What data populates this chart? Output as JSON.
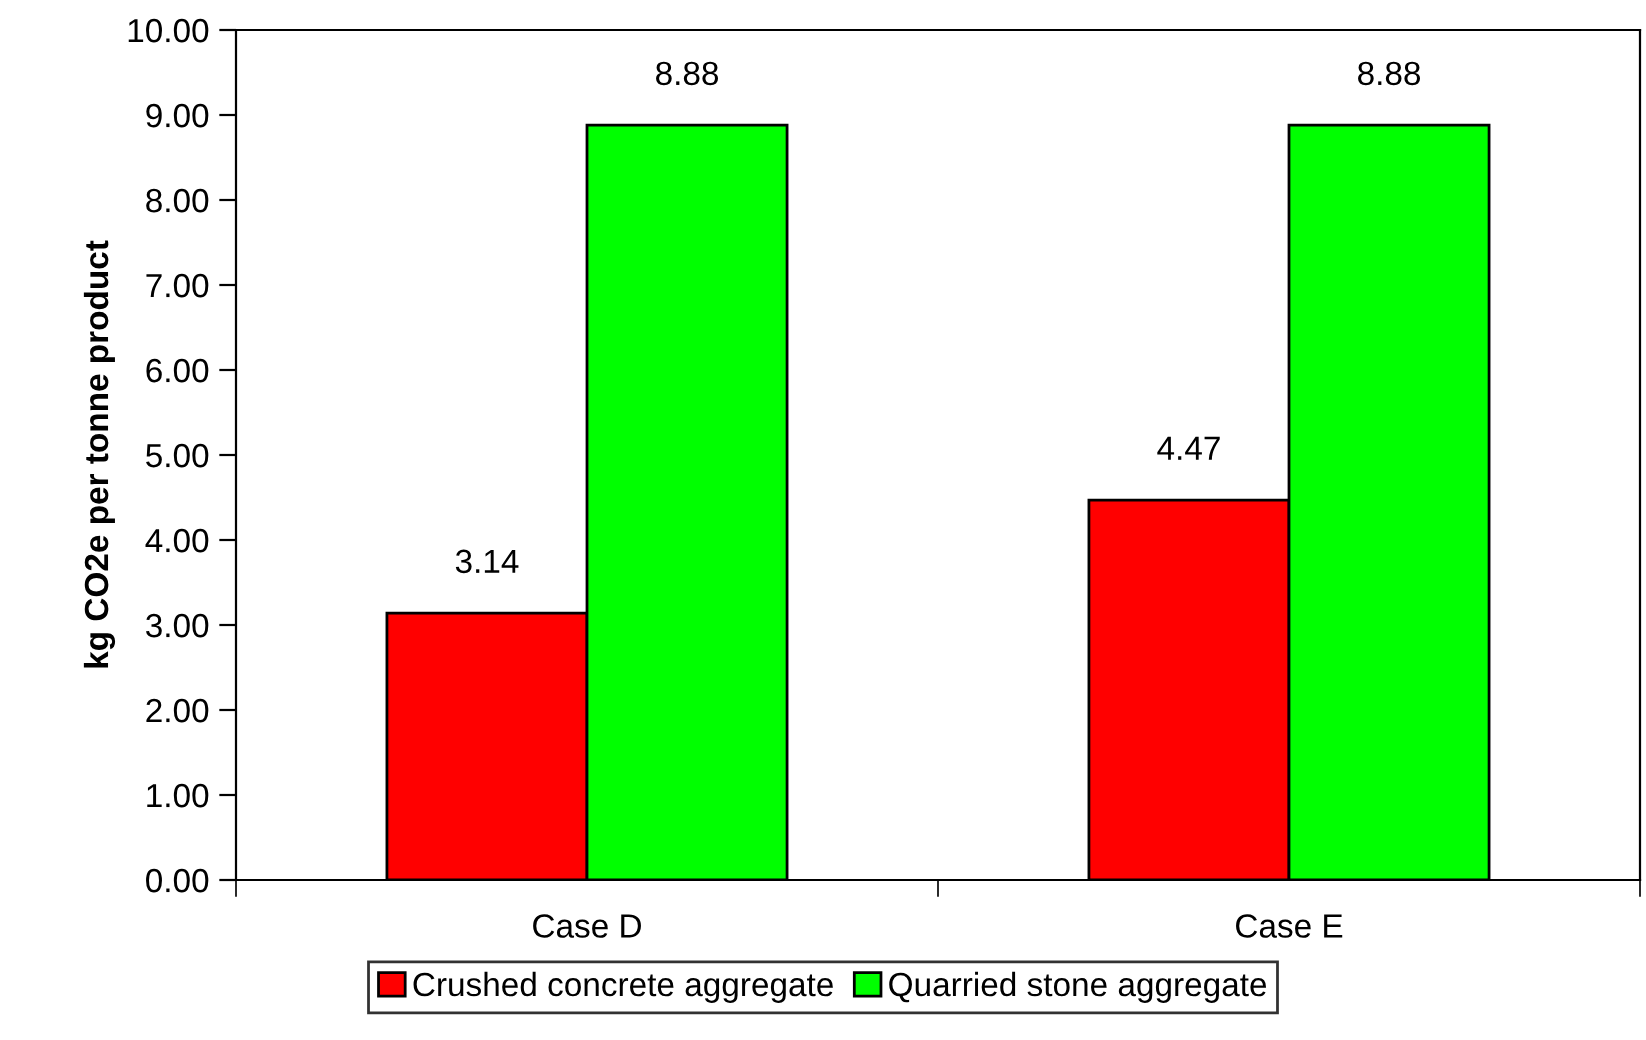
{
  "chart_data": {
    "type": "bar",
    "ylabel": "kg CO2e per tonne product",
    "categories": [
      "Case D",
      "Case E"
    ],
    "series": [
      {
        "name": "Crushed concrete aggregate",
        "color": "#ff0000",
        "values": [
          3.14,
          4.47
        ],
        "value_labels": [
          "3.14",
          "4.47"
        ]
      },
      {
        "name": "Quarried stone aggregate",
        "color": "#00ff00",
        "values": [
          8.88,
          8.88
        ],
        "value_labels": [
          "8.88",
          "8.88"
        ]
      }
    ],
    "ylim": [
      0,
      10
    ],
    "yticks": [
      {
        "value": 0,
        "label": "0.00"
      },
      {
        "value": 1,
        "label": "1.00"
      },
      {
        "value": 2,
        "label": "2.00"
      },
      {
        "value": 3,
        "label": "3.00"
      },
      {
        "value": 4,
        "label": "4.00"
      },
      {
        "value": 5,
        "label": "5.00"
      },
      {
        "value": 6,
        "label": "6.00"
      },
      {
        "value": 7,
        "label": "7.00"
      },
      {
        "value": 8,
        "label": "8.00"
      },
      {
        "value": 9,
        "label": "9.00"
      },
      {
        "value": 10,
        "label": "10.00"
      }
    ],
    "grid": false,
    "legend": "bottom"
  }
}
